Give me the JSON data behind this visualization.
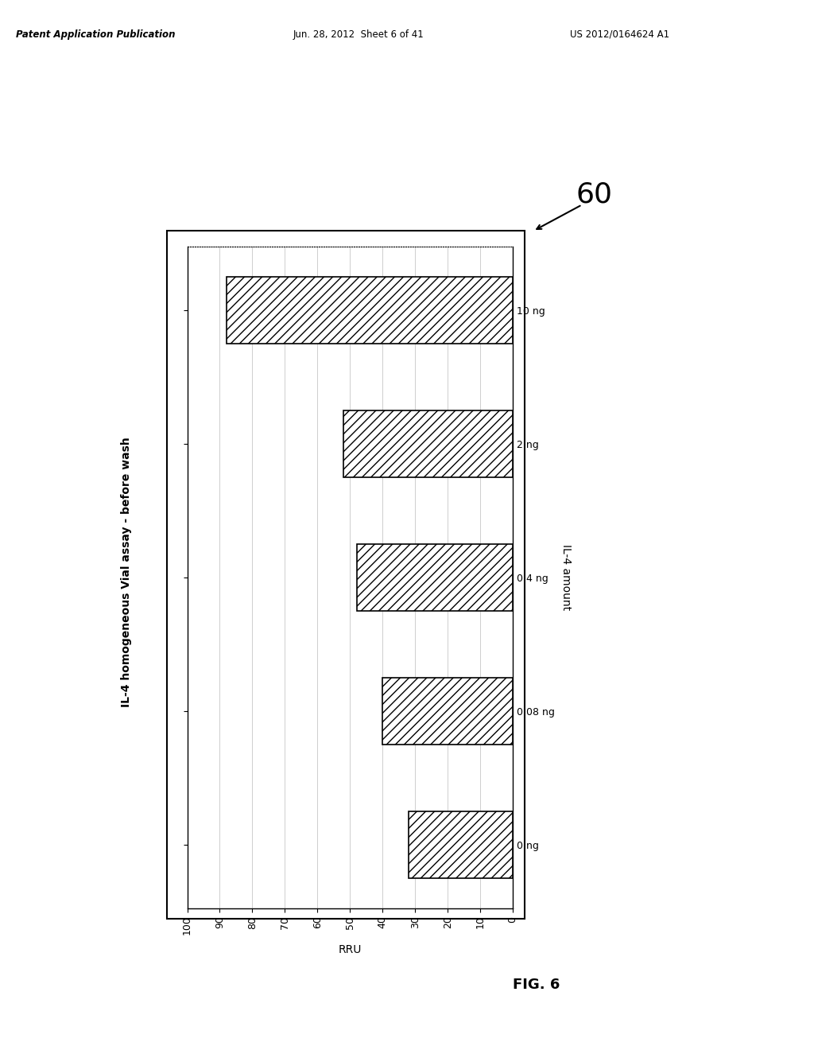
{
  "categories": [
    "0 ng",
    "0.08 ng",
    "0.4 ng",
    "2 ng",
    "10 ng"
  ],
  "values": [
    32,
    40,
    48,
    52,
    88
  ],
  "xlabel": "RRU",
  "ylabel": "IL-4 amount",
  "title": "IL-4 homogeneous Vial assay - before wash",
  "xlim": [
    0,
    100
  ],
  "xticks": [
    0,
    10,
    20,
    30,
    40,
    50,
    60,
    70,
    80,
    90,
    100
  ],
  "hatch": "///",
  "bar_color": "white",
  "bar_edgecolor": "black",
  "figure_label": "60",
  "background_color": "white",
  "chart_bg": "white",
  "grid_color": "#bbbbbb",
  "header_left": "Patent Application Publication",
  "header_center": "Jun. 28, 2012  Sheet 6 of 41",
  "header_right": "US 2012/0164624 A1",
  "fig_label": "FIG. 6",
  "chart_border_color": "black",
  "outer_border_color": "black"
}
